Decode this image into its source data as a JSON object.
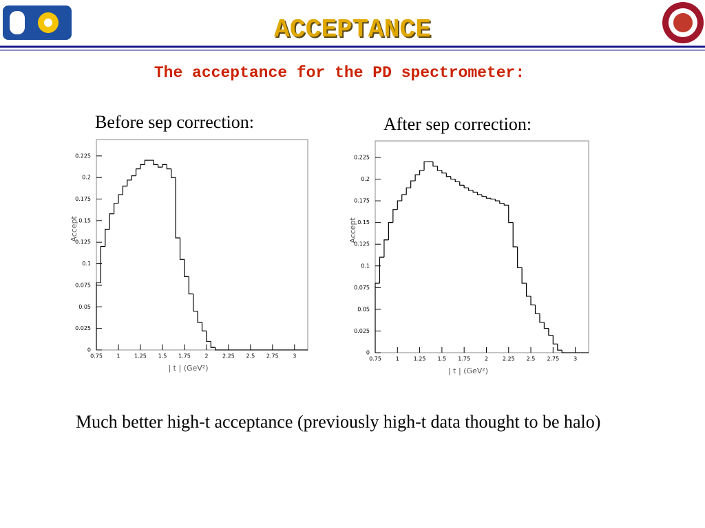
{
  "header": {
    "title": "ACCEPTANCE",
    "subtitle": "The acceptance for the PD spectrometer:"
  },
  "chart_data": [
    {
      "type": "histogram",
      "title": "Before sep correction:",
      "x_label": "| t | (GeV²)",
      "y_label": "Accept",
      "color": "#000000",
      "bins": [
        0.75,
        0.8,
        0.85,
        0.9,
        0.95,
        1.0,
        1.05,
        1.1,
        1.15,
        1.2,
        1.25,
        1.3,
        1.35,
        1.4,
        1.45,
        1.5,
        1.55,
        1.6,
        1.65,
        1.7,
        1.75,
        1.8,
        1.85,
        1.9,
        1.95,
        2.0,
        2.05,
        2.1,
        2.15,
        2.2,
        2.25,
        2.3,
        2.35,
        2.4,
        2.45,
        2.5,
        2.55,
        2.6,
        2.65,
        2.7,
        2.75,
        2.8,
        2.85,
        2.9,
        2.95,
        3.0,
        3.05,
        3.1,
        3.15
      ],
      "values": [
        0.078,
        0.12,
        0.14,
        0.158,
        0.17,
        0.18,
        0.19,
        0.197,
        0.202,
        0.21,
        0.215,
        0.22,
        0.22,
        0.215,
        0.212,
        0.215,
        0.21,
        0.2,
        0.13,
        0.105,
        0.085,
        0.065,
        0.045,
        0.032,
        0.022,
        0.01,
        0.003,
        0,
        0,
        0,
        0,
        0,
        0,
        0,
        0,
        0,
        0,
        0,
        0,
        0,
        0,
        0,
        0,
        0,
        0,
        0,
        0,
        0
      ],
      "xlim": [
        0.75,
        3.15
      ],
      "ylim": [
        0,
        0.244
      ],
      "xticks": [
        0.75,
        1,
        1.25,
        1.5,
        1.75,
        2,
        2.25,
        2.5,
        2.75,
        3
      ],
      "yticks": [
        0,
        0.025,
        0.05,
        0.075,
        0.1,
        0.125,
        0.15,
        0.175,
        0.2,
        0.225
      ]
    },
    {
      "type": "histogram",
      "title": "After sep correction:",
      "x_label": "| t | (GeV²)",
      "y_label": "Accept",
      "color": "#000000",
      "bins": [
        0.75,
        0.8,
        0.85,
        0.9,
        0.95,
        1.0,
        1.05,
        1.1,
        1.15,
        1.2,
        1.25,
        1.3,
        1.35,
        1.4,
        1.45,
        1.5,
        1.55,
        1.6,
        1.65,
        1.7,
        1.75,
        1.8,
        1.85,
        1.9,
        1.95,
        2.0,
        2.05,
        2.1,
        2.15,
        2.2,
        2.25,
        2.3,
        2.35,
        2.4,
        2.45,
        2.5,
        2.55,
        2.6,
        2.65,
        2.7,
        2.75,
        2.8,
        2.85,
        2.9,
        2.95,
        3.0,
        3.05,
        3.1,
        3.15
      ],
      "values": [
        0.08,
        0.11,
        0.13,
        0.15,
        0.165,
        0.175,
        0.182,
        0.19,
        0.198,
        0.205,
        0.21,
        0.22,
        0.22,
        0.215,
        0.21,
        0.207,
        0.203,
        0.2,
        0.197,
        0.193,
        0.19,
        0.187,
        0.185,
        0.182,
        0.18,
        0.178,
        0.177,
        0.175,
        0.172,
        0.17,
        0.15,
        0.122,
        0.098,
        0.08,
        0.065,
        0.055,
        0.045,
        0.035,
        0.028,
        0.02,
        0.01,
        0.003,
        0,
        0,
        0,
        0,
        0,
        0
      ],
      "xlim": [
        0.75,
        3.15
      ],
      "ylim": [
        0,
        0.244
      ],
      "xticks": [
        0.75,
        1,
        1.25,
        1.5,
        1.75,
        2,
        2.25,
        2.5,
        2.75,
        3
      ],
      "yticks": [
        0,
        0.025,
        0.05,
        0.075,
        0.1,
        0.125,
        0.15,
        0.175,
        0.2,
        0.225
      ]
    }
  ],
  "body": {
    "text": "Much better high-t acceptance (previously high-t data thought to be halo)"
  }
}
